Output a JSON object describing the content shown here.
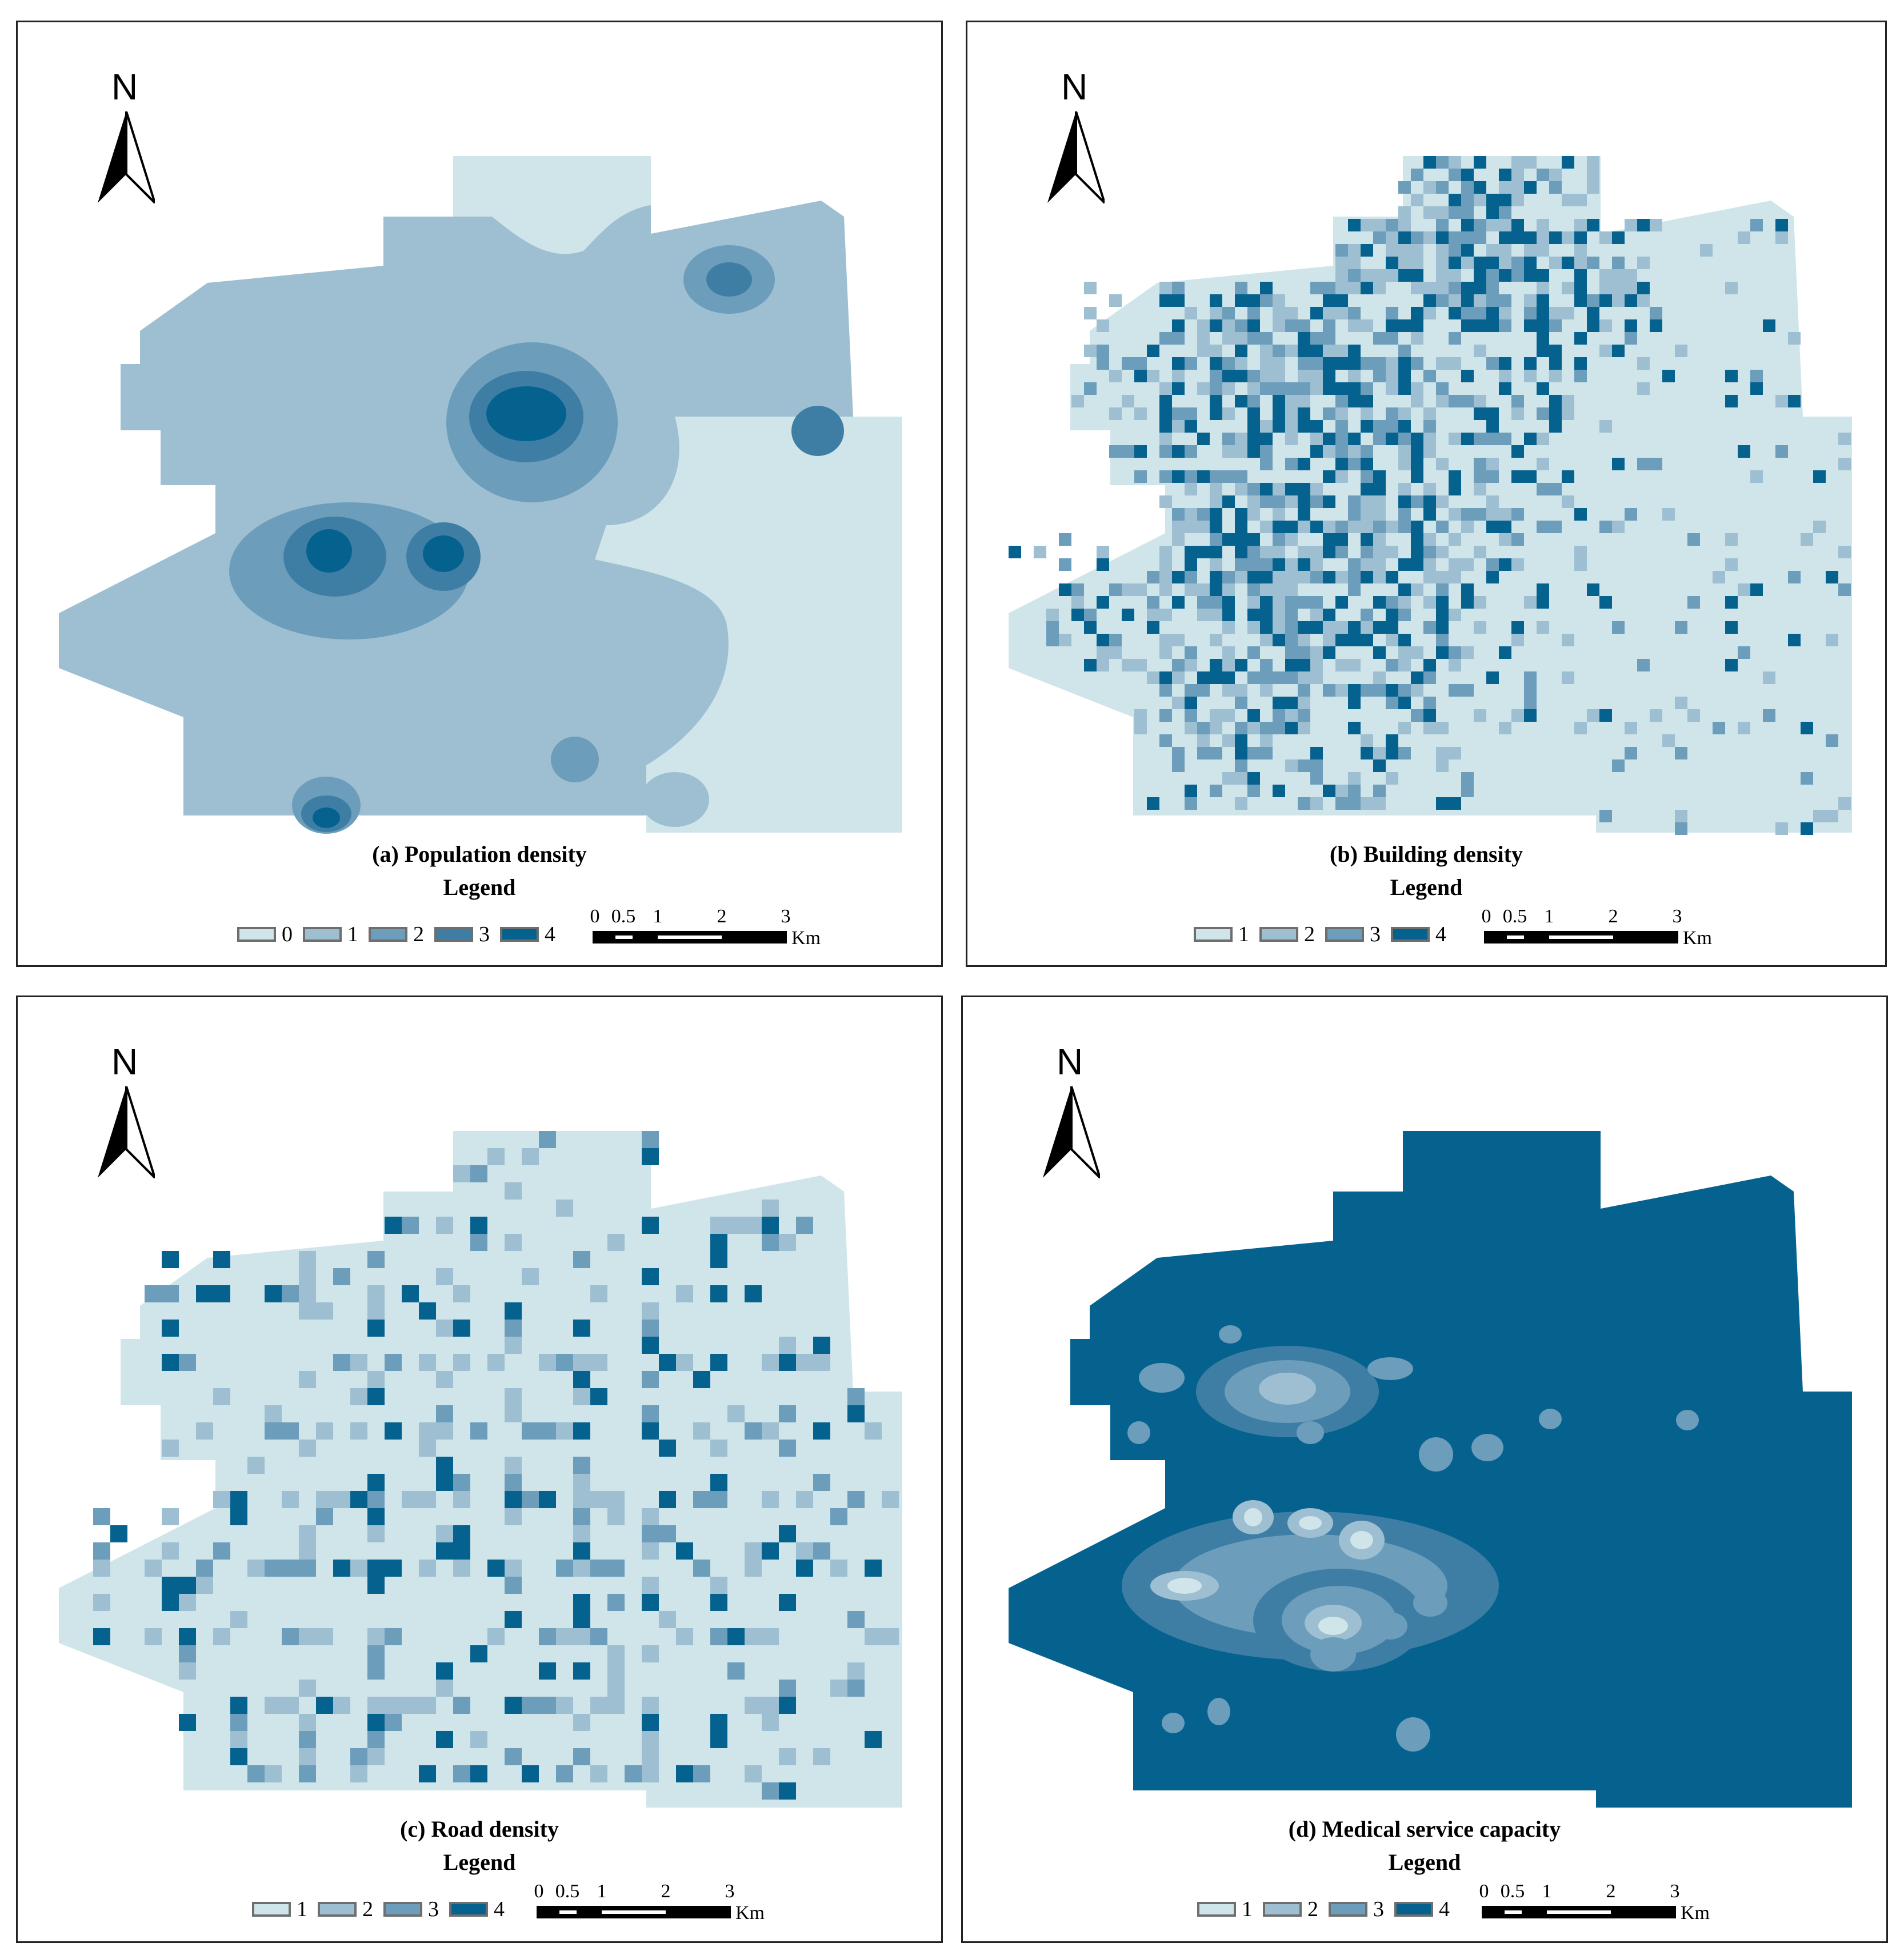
{
  "colors": {
    "class0": "#cfe5ea",
    "class1": "#9dbfd1",
    "class2": "#6c9dbb",
    "class3": "#3f7ea4",
    "class4": "#05628f",
    "border": "#6e6e6e"
  },
  "north_label": "N",
  "legend_title": "Legend",
  "scale": {
    "ticks": [
      "0",
      "0.5",
      "1",
      "2",
      "3"
    ],
    "unit": "Km"
  },
  "panels": [
    {
      "caption": "(a) Population density",
      "legend": [
        "0",
        "1",
        "2",
        "3",
        "4"
      ]
    },
    {
      "caption": "(b) Building density",
      "legend": [
        "1",
        "2",
        "3",
        "4"
      ]
    },
    {
      "caption": "(c) Road density",
      "legend": [
        "1",
        "2",
        "3",
        "4"
      ]
    },
    {
      "caption": "(d) Medical service capacity",
      "legend": [
        "1",
        "2",
        "3",
        "4"
      ]
    }
  ]
}
